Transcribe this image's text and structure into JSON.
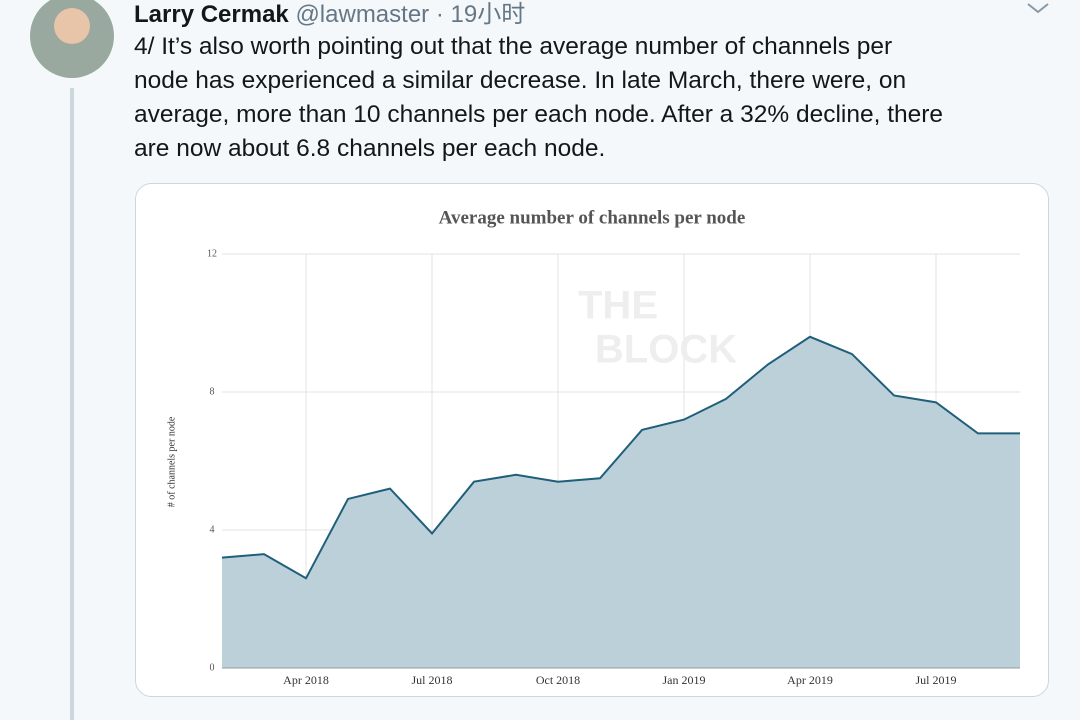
{
  "tweet": {
    "author": "Larry Cermak",
    "handle": "@lawmaster",
    "time": "· 19小时",
    "text_lines": [
      "4/ It’s also worth pointing out that the average number of channels per",
      "node has experienced a similar decrease. In late March, there were, on",
      "average, more than 10 channels per each node. After a 32% decline, there",
      "are now about 6.8 channels per each node."
    ]
  },
  "chart_data": {
    "type": "area",
    "title": "Average number of channels per node",
    "y_label": "# of channels per node",
    "watermark": [
      "THE",
      "BLOCK"
    ],
    "x": [
      "2018-02",
      "2018-03",
      "2018-04",
      "2018-05",
      "2018-06",
      "2018-07",
      "2018-08",
      "2018-09",
      "2018-10",
      "2018-11",
      "2018-12",
      "2019-01",
      "2019-02",
      "2019-03",
      "2019-04",
      "2019-05",
      "2019-06",
      "2019-07",
      "2019-08",
      "2019-09"
    ],
    "values": [
      3.2,
      3.3,
      2.6,
      4.9,
      5.2,
      3.9,
      5.4,
      5.6,
      5.4,
      5.5,
      6.9,
      7.2,
      7.8,
      8.8,
      9.6,
      9.1,
      7.9,
      7.7,
      6.8,
      6.8
    ],
    "color": "#1f5f7a",
    "fill": "#b8cdd8",
    "xlim": [
      "2018-02",
      "2019-09"
    ],
    "xticks": [
      {
        "value": "2018-04",
        "label": "Apr 2018"
      },
      {
        "value": "2018-07",
        "label": "Jul 2018"
      },
      {
        "value": "2018-10",
        "label": "Oct 2018"
      },
      {
        "value": "2019-01",
        "label": "Jan 2019"
      },
      {
        "value": "2019-04",
        "label": "Apr 2019"
      },
      {
        "value": "2019-07",
        "label": "Jul 2019"
      }
    ],
    "ylim": [
      0,
      12
    ],
    "yticks": [
      0,
      4,
      8,
      12
    ],
    "grid": true
  }
}
